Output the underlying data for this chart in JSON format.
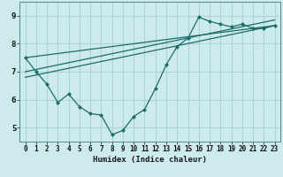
{
  "title": "",
  "xlabel": "Humidex (Indice chaleur)",
  "background_color": "#cdeaec",
  "grid_color": "#acd4d8",
  "line_color": "#1a6e6a",
  "xlim": [
    -0.5,
    23.5
  ],
  "ylim": [
    4.5,
    9.5
  ],
  "xticks": [
    0,
    1,
    2,
    3,
    4,
    5,
    6,
    7,
    8,
    9,
    10,
    11,
    12,
    13,
    14,
    15,
    16,
    17,
    18,
    19,
    20,
    21,
    22,
    23
  ],
  "yticks": [
    5,
    6,
    7,
    8,
    9
  ],
  "series1_x": [
    0,
    1,
    2,
    3,
    4,
    5,
    6,
    7,
    8,
    9,
    10,
    11,
    12,
    13,
    14,
    15,
    16,
    17,
    18,
    19,
    20,
    21,
    22,
    23
  ],
  "series1_y": [
    7.5,
    7.0,
    6.55,
    5.9,
    6.2,
    5.75,
    5.5,
    5.45,
    4.75,
    4.9,
    5.4,
    5.65,
    6.4,
    7.25,
    7.9,
    8.2,
    8.95,
    8.8,
    8.7,
    8.6,
    8.7,
    8.55,
    8.55,
    8.65
  ],
  "line2_x0": 0,
  "line2_x1": 23,
  "line2_y0": 7.5,
  "line2_y1": 8.65,
  "line3_x0": 0,
  "line3_x1": 23,
  "line3_y0": 7.0,
  "line3_y1": 8.85,
  "line4_x0": 0,
  "line4_x1": 23,
  "line4_y0": 6.8,
  "line4_y1": 8.65
}
